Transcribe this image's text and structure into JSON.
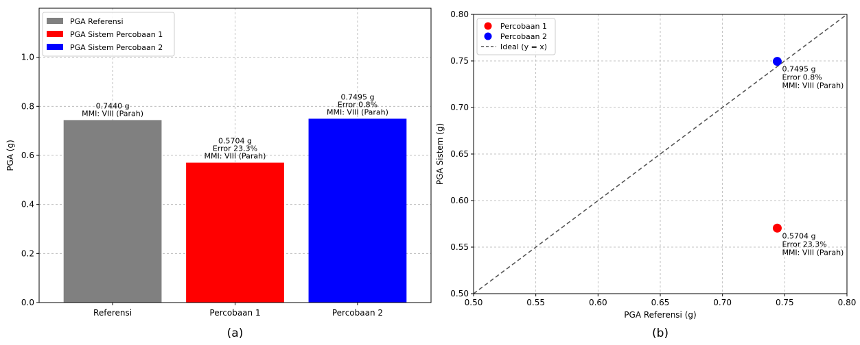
{
  "chart_data": [
    {
      "type": "bar",
      "panel_label": "(a)",
      "categories": [
        "Referensi",
        "Percobaan 1",
        "Percobaan 2"
      ],
      "values": [
        0.744,
        0.5704,
        0.7495
      ],
      "colors": [
        "#808080",
        "#ff0000",
        "#0000ff"
      ],
      "legend": [
        "PGA Referensi",
        "PGA Sistem Percobaan 1",
        "PGA Sistem Percobaan 2"
      ],
      "legend_placement": "top-left",
      "annotations": [
        [
          "0.7440 g",
          "MMI: VIII (Parah)"
        ],
        [
          "0.5704 g",
          "Error 23.3%",
          "MMI: VIII (Parah)"
        ],
        [
          "0.7495 g",
          "Error 0.8%",
          "MMI: VIII (Parah)"
        ]
      ],
      "xlabel": "",
      "ylabel": "PGA (g)",
      "ylim": [
        0,
        1.2
      ],
      "yticks": [
        "0.0",
        "0.2",
        "0.4",
        "0.6",
        "0.8",
        "1.0"
      ],
      "grid": true
    },
    {
      "type": "scatter",
      "panel_label": "(b)",
      "series": [
        {
          "name": "Percobaan 1",
          "color": "#ff0000",
          "points": [
            [
              0.744,
              0.5704
            ]
          ],
          "annotation": [
            "0.5704 g",
            "Error 23.3%",
            "MMI: VIII (Parah)"
          ]
        },
        {
          "name": "Percobaan 2",
          "color": "#0000ff",
          "points": [
            [
              0.744,
              0.7495
            ]
          ],
          "annotation": [
            "0.7495 g",
            "Error 0.8%",
            "MMI: VIII (Parah)"
          ]
        }
      ],
      "reference_line": {
        "name": "Ideal (y = x)",
        "color": "#555555",
        "style": "dashed"
      },
      "legend_placement": "top-left",
      "xlabel": "PGA Referensi (g)",
      "ylabel": "PGA Sistem (g)",
      "xlim": [
        0.5,
        0.8
      ],
      "ylim": [
        0.5,
        0.8
      ],
      "xticks": [
        "0.50",
        "0.55",
        "0.60",
        "0.65",
        "0.70",
        "0.75",
        "0.80"
      ],
      "yticks": [
        "0.50",
        "0.55",
        "0.60",
        "0.65",
        "0.70",
        "0.75",
        "0.80"
      ],
      "grid": true
    }
  ]
}
